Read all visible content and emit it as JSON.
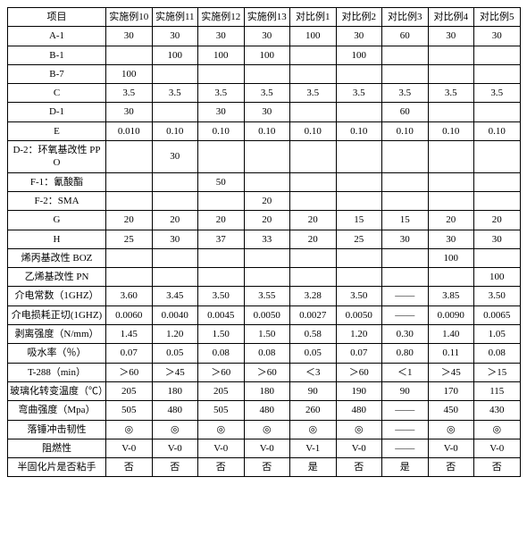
{
  "header": {
    "item": "项目",
    "cols": [
      "实施例10",
      "实施例11",
      "实施例12",
      "实施例13",
      "对比例1",
      "对比例2",
      "对比例3",
      "对比例4",
      "对比例5"
    ]
  },
  "rows": [
    {
      "label": "A-1",
      "vals": [
        "30",
        "30",
        "30",
        "30",
        "100",
        "30",
        "60",
        "30",
        "30"
      ]
    },
    {
      "label": "B-1",
      "vals": [
        "",
        "100",
        "100",
        "100",
        "",
        "100",
        "",
        "",
        ""
      ]
    },
    {
      "label": "B-7",
      "vals": [
        "100",
        "",
        "",
        "",
        "",
        "",
        "",
        "",
        ""
      ]
    },
    {
      "label": "C",
      "vals": [
        "3.5",
        "3.5",
        "3.5",
        "3.5",
        "3.5",
        "3.5",
        "3.5",
        "3.5",
        "3.5"
      ]
    },
    {
      "label": "D-1",
      "vals": [
        "30",
        "",
        "30",
        "30",
        "",
        "",
        "60",
        "",
        ""
      ]
    },
    {
      "label": "E",
      "vals": [
        "0.010",
        "0.10",
        "0.10",
        "0.10",
        "0.10",
        "0.10",
        "0.10",
        "0.10",
        "0.10"
      ]
    },
    {
      "label": "D-2：环氧基改性 PPO",
      "vals": [
        "",
        "30",
        "",
        "",
        "",
        "",
        "",
        "",
        ""
      ]
    },
    {
      "label": "F-1：氰酸酯",
      "vals": [
        "",
        "",
        "50",
        "",
        "",
        "",
        "",
        "",
        ""
      ]
    },
    {
      "label": "F-2：SMA",
      "vals": [
        "",
        "",
        "",
        "20",
        "",
        "",
        "",
        "",
        ""
      ]
    },
    {
      "label": "G",
      "vals": [
        "20",
        "20",
        "20",
        "20",
        "20",
        "15",
        "15",
        "20",
        "20"
      ]
    },
    {
      "label": "H",
      "vals": [
        "25",
        "30",
        "37",
        "33",
        "20",
        "25",
        "30",
        "30",
        "30"
      ]
    },
    {
      "label": "烯丙基改性 BOZ",
      "vals": [
        "",
        "",
        "",
        "",
        "",
        "",
        "",
        "100",
        ""
      ]
    },
    {
      "label": "乙烯基改性 PN",
      "vals": [
        "",
        "",
        "",
        "",
        "",
        "",
        "",
        "",
        "100"
      ]
    },
    {
      "label": "介电常数（1GHZ）",
      "vals": [
        "3.60",
        "3.45",
        "3.50",
        "3.55",
        "3.28",
        "3.50",
        "——",
        "3.85",
        "3.50"
      ]
    },
    {
      "label": "介电损耗正切(1GHZ)",
      "vals": [
        "0.0060",
        "0.0040",
        "0.0045",
        "0.0050",
        "0.0027",
        "0.0050",
        "——",
        "0.0090",
        "0.0065"
      ]
    },
    {
      "label": "剥离强度（N/mm）",
      "vals": [
        "1.45",
        "1.20",
        "1.50",
        "1.50",
        "0.58",
        "1.20",
        "0.30",
        "1.40",
        "1.05"
      ]
    },
    {
      "label": "吸水率（％）",
      "vals": [
        "0.07",
        "0.05",
        "0.08",
        "0.08",
        "0.05",
        "0.07",
        "0.80",
        "0.11",
        "0.08"
      ]
    },
    {
      "label": "T-288（min）",
      "vals": [
        "＞60",
        "＞45",
        "＞60",
        "＞60",
        "＜3",
        "＞60",
        "＜1",
        "＞45",
        "＞15"
      ]
    },
    {
      "label": "玻璃化转变温度（℃）",
      "vals": [
        "205",
        "180",
        "205",
        "180",
        "90",
        "190",
        "90",
        "170",
        "115"
      ]
    },
    {
      "label": "弯曲强度（Mpa）",
      "vals": [
        "505",
        "480",
        "505",
        "480",
        "260",
        "480",
        "——",
        "450",
        "430"
      ]
    },
    {
      "label": "落锤冲击韧性",
      "vals": [
        "◎",
        "◎",
        "◎",
        "◎",
        "◎",
        "◎",
        "——",
        "◎",
        "◎"
      ]
    },
    {
      "label": "阻燃性",
      "vals": [
        "V-0",
        "V-0",
        "V-0",
        "V-0",
        "V-1",
        "V-0",
        "——",
        "V-0",
        "V-0"
      ]
    },
    {
      "label": "半固化片是否粘手",
      "vals": [
        "否",
        "否",
        "否",
        "否",
        "是",
        "否",
        "是",
        "否",
        "否"
      ]
    }
  ]
}
